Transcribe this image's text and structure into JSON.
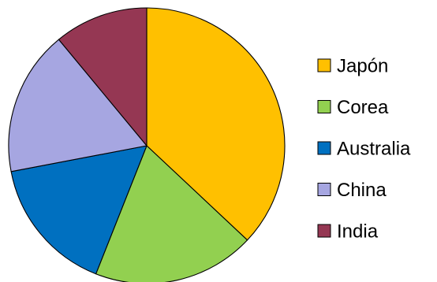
{
  "chart_data": {
    "type": "pie",
    "title": "",
    "start_angle_deg": 90,
    "direction": "clockwise",
    "legend_position": "right",
    "slices": [
      {
        "label": "Japón",
        "value": 37,
        "color": "#FFC000"
      },
      {
        "label": "Corea",
        "value": 19,
        "color": "#92D050"
      },
      {
        "label": "Australia",
        "value": 16,
        "color": "#0070C0"
      },
      {
        "label": "China",
        "value": 17,
        "color": "#A6A6E1"
      },
      {
        "label": "India",
        "value": 11,
        "color": "#953753"
      }
    ]
  }
}
